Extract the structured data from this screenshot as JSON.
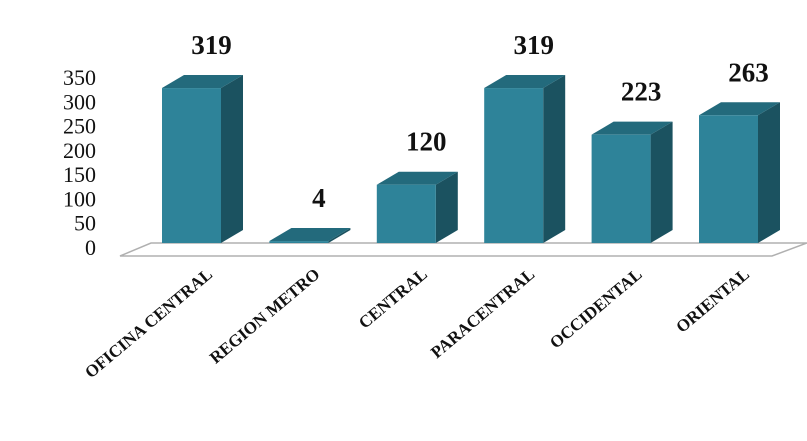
{
  "chart_data": {
    "type": "bar",
    "categories": [
      "OFICINA CENTRAL",
      "REGION METRO",
      "CENTRAL",
      "PARACENTRAL",
      "OCCIDENTAL",
      "ORIENTAL"
    ],
    "values": [
      319,
      4,
      120,
      319,
      223,
      263
    ],
    "data_labels": [
      "319",
      "4",
      "120",
      "319",
      "223",
      "263"
    ],
    "ylim": [
      0,
      350
    ],
    "yticks": [
      "0",
      "50",
      "100",
      "150",
      "200",
      "250",
      "300",
      "350"
    ],
    "title": "",
    "xlabel": "",
    "ylabel": "",
    "grid": false,
    "legend": "none",
    "style": "3d-column",
    "colors": {
      "front": "#2e8399",
      "top": "#236a7c",
      "side": "#1b5260",
      "floor_edge": "#b0b0b0"
    }
  }
}
